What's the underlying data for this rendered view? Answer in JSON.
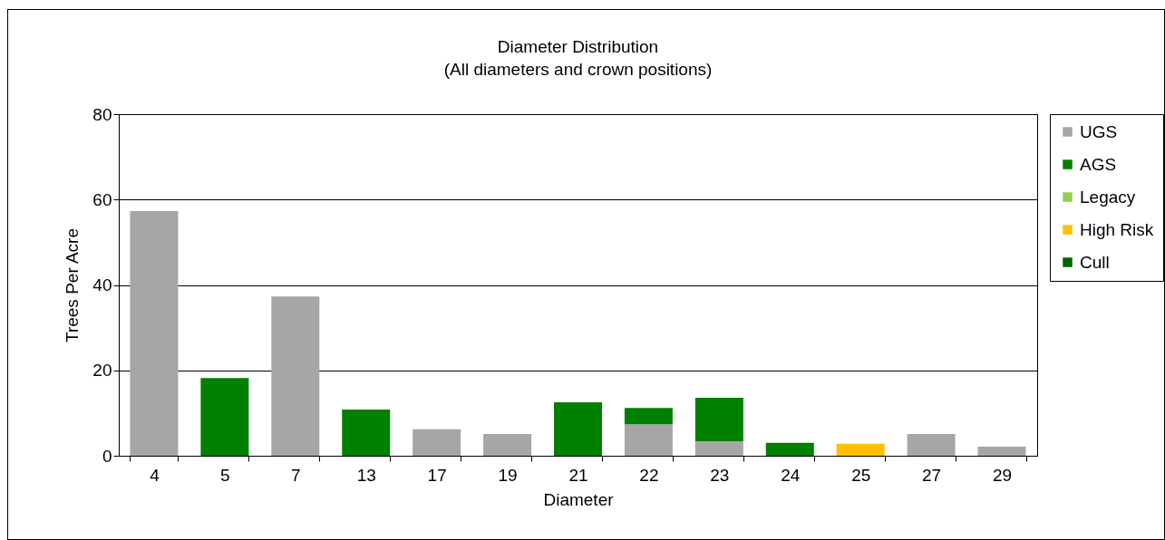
{
  "chart_data": {
    "type": "bar",
    "title": "Diameter Distribution",
    "subtitle": "(All diameters and crown positions)",
    "xlabel": "Diameter",
    "ylabel": "Trees Per Acre",
    "categories": [
      "4",
      "5",
      "7",
      "13",
      "17",
      "19",
      "21",
      "22",
      "23",
      "24",
      "25",
      "27",
      "29"
    ],
    "stacked": true,
    "series": [
      {
        "name": "UGS",
        "color": "#a6a6a6",
        "values": [
          57.3,
          null,
          37.3,
          null,
          6.2,
          5.1,
          null,
          7.4,
          3.4,
          null,
          null,
          5.1,
          2.1
        ]
      },
      {
        "name": "AGS",
        "color": "#008000",
        "values": [
          null,
          18.2,
          null,
          10.8,
          null,
          null,
          12.5,
          3.8,
          10.2,
          3.0,
          null,
          null,
          null
        ]
      },
      {
        "name": "Legacy",
        "color": "#92d050",
        "values": [
          null,
          null,
          null,
          null,
          null,
          null,
          null,
          null,
          null,
          null,
          null,
          null,
          null
        ]
      },
      {
        "name": "High Risk",
        "color": "#ffc000",
        "values": [
          null,
          null,
          null,
          null,
          null,
          null,
          null,
          null,
          null,
          null,
          2.8,
          null,
          null
        ]
      },
      {
        "name": "Cull",
        "color": "#006400",
        "values": [
          null,
          null,
          null,
          null,
          null,
          null,
          null,
          null,
          null,
          null,
          null,
          null,
          null
        ]
      }
    ],
    "ylim": [
      0,
      80
    ],
    "yticks": [
      0,
      20,
      40,
      60,
      80
    ],
    "grid": "y",
    "legend": "right"
  }
}
